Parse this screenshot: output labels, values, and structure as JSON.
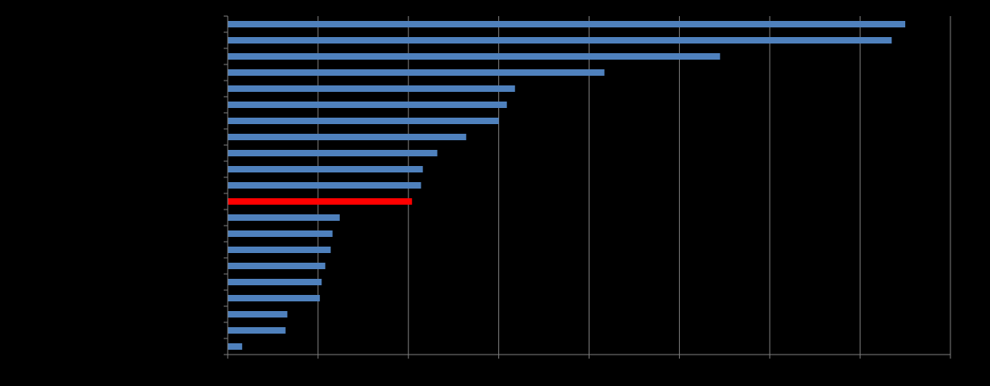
{
  "chart_data": {
    "type": "bar",
    "orientation": "horizontal",
    "title": "",
    "xlabel": "",
    "ylabel": "",
    "categories": [
      "",
      "",
      "",
      "",
      "",
      "",
      "",
      "",
      "",
      "",
      "",
      "",
      "",
      "",
      "",
      "",
      "",
      "",
      "",
      "",
      ""
    ],
    "values": [
      75,
      73.5,
      54.5,
      41.7,
      31.8,
      30.9,
      30,
      26.4,
      23.2,
      21.6,
      21.4,
      20.4,
      12.4,
      11.6,
      11.4,
      10.8,
      10.4,
      10.2,
      6.6,
      6.4,
      1.6
    ],
    "highlight_index": 11,
    "xlim": [
      0,
      80
    ],
    "x_ticks": [
      0,
      10,
      20,
      30,
      40,
      50,
      60,
      70,
      80
    ],
    "grid": "vertical",
    "legend": "none",
    "colors": {
      "background": "#000000",
      "bar": "#4f81bd",
      "highlight": "#ff0000",
      "grid": "#7f7f7f",
      "axis": "#7f7f7f"
    }
  }
}
